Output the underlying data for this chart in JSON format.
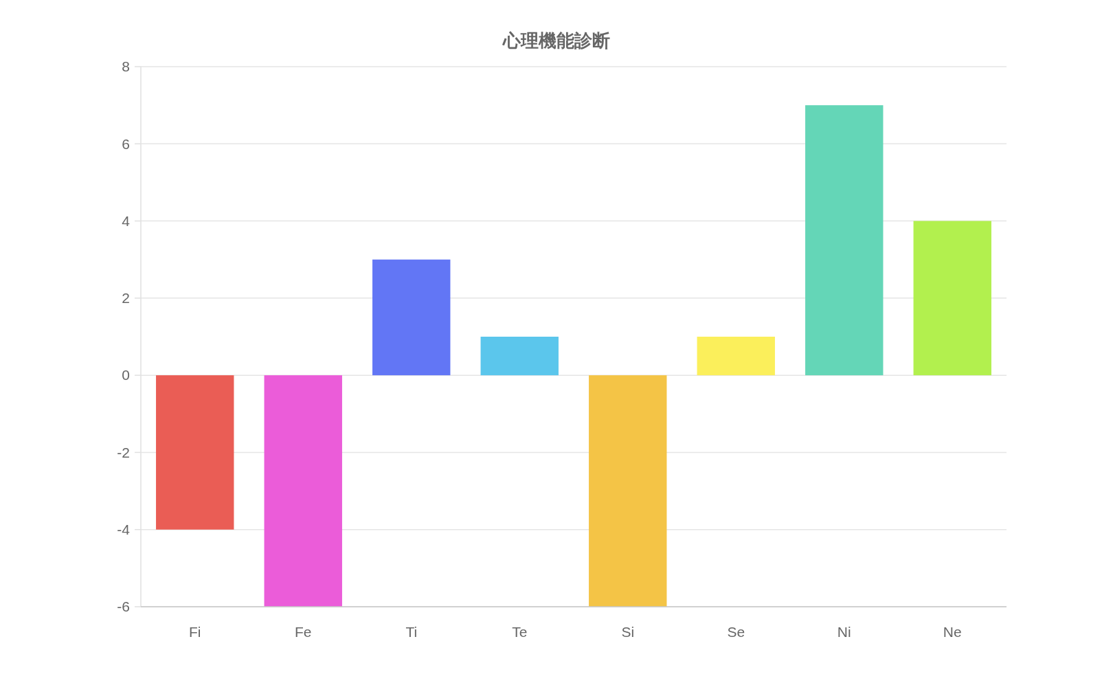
{
  "chart_data": {
    "type": "bar",
    "title": "心理機能診断",
    "categories": [
      "Fi",
      "Fe",
      "Ti",
      "Te",
      "Si",
      "Se",
      "Ni",
      "Ne"
    ],
    "values": [
      -4,
      -6,
      3,
      1,
      -6,
      1,
      7,
      4
    ],
    "colors": [
      "#ea5d55",
      "#eb5cd9",
      "#6276f5",
      "#5bc6ec",
      "#f4c446",
      "#fbef5b",
      "#64d6b7",
      "#b2f04e"
    ],
    "ylim": [
      -6,
      8
    ],
    "yticks": [
      -6,
      -4,
      -2,
      0,
      2,
      4,
      6,
      8
    ],
    "grid": "y"
  }
}
